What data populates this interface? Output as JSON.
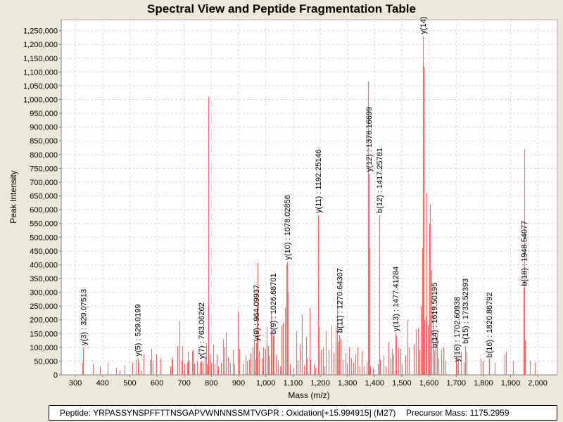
{
  "chart_data": {
    "type": "bar",
    "title": "Spectral View and Peptide Fragmentation Table",
    "xlabel": "Mass (m/z)",
    "ylabel": "Peak Intensity",
    "xlim": [
      248,
      2072
    ],
    "ylim": [
      0,
      1290000
    ],
    "grid": true,
    "x_ticks": [
      "300",
      "400",
      "500",
      "600",
      "700",
      "800",
      "900",
      "1,000",
      "1,100",
      "1,200",
      "1,300",
      "1,400",
      "1,500",
      "1,600",
      "1,700",
      "1,800",
      "1,900",
      "2,000"
    ],
    "x_tick_values": [
      300,
      400,
      500,
      600,
      700,
      800,
      900,
      1000,
      1100,
      1200,
      1300,
      1400,
      1500,
      1600,
      1700,
      1800,
      1900,
      2000
    ],
    "y_ticks": [
      "0",
      "50,000",
      "100,000",
      "150,000",
      "200,000",
      "250,000",
      "300,000",
      "350,000",
      "400,000",
      "450,000",
      "500,000",
      "550,000",
      "600,000",
      "650,000",
      "700,000",
      "750,000",
      "800,000",
      "850,000",
      "900,000",
      "950,000",
      "1,000,000",
      "1,050,000",
      "1,100,000",
      "1,150,000",
      "1,200,000",
      "1,250,000"
    ],
    "y_tick_values": [
      0,
      50000,
      100000,
      150000,
      200000,
      250000,
      300000,
      350000,
      400000,
      450000,
      500000,
      550000,
      600000,
      650000,
      700000,
      750000,
      800000,
      850000,
      900000,
      950000,
      1000000,
      1050000,
      1100000,
      1150000,
      1200000,
      1250000
    ],
    "peak_color": "#ff4545",
    "annotations": [
      {
        "label": "y(3) : 329.07513",
        "mz": 329.07513,
        "intensity": 100000
      },
      {
        "label": "y(5) : 529.0199",
        "mz": 529.0199,
        "intensity": 60000
      },
      {
        "label": "y(7) : 763.06262",
        "mz": 763.06262,
        "intensity": 50000
      },
      {
        "label": "y(9) : 964.09937",
        "mz": 964.09937,
        "intensity": 115000
      },
      {
        "label": "b(9) : 1026.68701",
        "mz": 1026.68701,
        "intensity": 140000
      },
      {
        "label": "y(10) : 1078.02856",
        "mz": 1078.02856,
        "intensity": 410000
      },
      {
        "label": "y(11) : 1192.25146",
        "mz": 1192.25146,
        "intensity": 580000
      },
      {
        "label": "b(11) : 1270.64307",
        "mz": 1270.64307,
        "intensity": 145000
      },
      {
        "label": "y(12) : 1378.16699",
        "mz": 1378.16699,
        "intensity": 730000
      },
      {
        "label": "b(12) : 1417.25781",
        "mz": 1417.25781,
        "intensity": 580000
      },
      {
        "label": "y(13) : 1477.41284",
        "mz": 1477.41284,
        "intensity": 150000
      },
      {
        "label": "y(14)",
        "mz": 1578.0,
        "intensity": 1230000
      },
      {
        "label": "b(14) : 1619.50195",
        "mz": 1619.50195,
        "intensity": 90000
      },
      {
        "label": "y(16) : 1702.60938",
        "mz": 1702.60938,
        "intensity": 40000
      },
      {
        "label": "b(15) : 1733.52393",
        "mz": 1733.52393,
        "intensity": 105000
      },
      {
        "label": "b(16) : 1820.86792",
        "mz": 1820.86792,
        "intensity": 55000
      },
      {
        "label": "b(18) : 1948.54077",
        "mz": 1948.54077,
        "intensity": 315000
      }
    ],
    "peaks": [
      [
        326,
        45000
      ],
      [
        365,
        40000
      ],
      [
        390,
        30000
      ],
      [
        420,
        45000
      ],
      [
        450,
        25000
      ],
      [
        462,
        15000
      ],
      [
        482,
        35000
      ],
      [
        510,
        45000
      ],
      [
        522,
        55000
      ],
      [
        532,
        45000
      ],
      [
        540,
        15000
      ],
      [
        550,
        75000
      ],
      [
        575,
        55000
      ],
      [
        578,
        95000
      ],
      [
        585,
        50000
      ],
      [
        598,
        75000
      ],
      [
        612,
        60000
      ],
      [
        650,
        30000
      ],
      [
        654,
        65000
      ],
      [
        657,
        55000
      ],
      [
        675,
        105000
      ],
      [
        682,
        195000
      ],
      [
        690,
        50000
      ],
      [
        692,
        105000
      ],
      [
        700,
        40000
      ],
      [
        710,
        45000
      ],
      [
        714,
        85000
      ],
      [
        716,
        50000
      ],
      [
        728,
        85000
      ],
      [
        731,
        90000
      ],
      [
        737,
        40000
      ],
      [
        748,
        50000
      ],
      [
        758,
        45000
      ],
      [
        768,
        45000
      ],
      [
        775,
        60000
      ],
      [
        780,
        115000
      ],
      [
        784,
        40000
      ],
      [
        788,
        1010000
      ],
      [
        790,
        250000
      ],
      [
        793,
        75000
      ],
      [
        800,
        45000
      ],
      [
        808,
        110000
      ],
      [
        812,
        40000
      ],
      [
        820,
        75000
      ],
      [
        825,
        30000
      ],
      [
        835,
        45000
      ],
      [
        842,
        130000
      ],
      [
        848,
        100000
      ],
      [
        853,
        155000
      ],
      [
        862,
        65000
      ],
      [
        868,
        45000
      ],
      [
        878,
        90000
      ],
      [
        885,
        40000
      ],
      [
        898,
        230000
      ],
      [
        902,
        95000
      ],
      [
        915,
        40000
      ],
      [
        925,
        70000
      ],
      [
        932,
        50000
      ],
      [
        940,
        55000
      ],
      [
        945,
        80000
      ],
      [
        952,
        100000
      ],
      [
        958,
        130000
      ],
      [
        962,
        55000
      ],
      [
        966,
        250000
      ],
      [
        970,
        408000
      ],
      [
        975,
        85000
      ],
      [
        985,
        60000
      ],
      [
        990,
        100000
      ],
      [
        998,
        95000
      ],
      [
        1004,
        175000
      ],
      [
        1008,
        105000
      ],
      [
        1012,
        70000
      ],
      [
        1018,
        225000
      ],
      [
        1022,
        150000
      ],
      [
        1030,
        150000
      ],
      [
        1038,
        75000
      ],
      [
        1045,
        50000
      ],
      [
        1052,
        30000
      ],
      [
        1058,
        180000
      ],
      [
        1063,
        190000
      ],
      [
        1072,
        245000
      ],
      [
        1076,
        400000
      ],
      [
        1082,
        300000
      ],
      [
        1088,
        40000
      ],
      [
        1102,
        25000
      ],
      [
        1112,
        160000
      ],
      [
        1118,
        50000
      ],
      [
        1125,
        110000
      ],
      [
        1132,
        220000
      ],
      [
        1140,
        35000
      ],
      [
        1148,
        140000
      ],
      [
        1152,
        60000
      ],
      [
        1160,
        245000
      ],
      [
        1165,
        55000
      ],
      [
        1176,
        40000
      ],
      [
        1182,
        25000
      ],
      [
        1195,
        175000
      ],
      [
        1202,
        90000
      ],
      [
        1210,
        100000
      ],
      [
        1216,
        30000
      ],
      [
        1222,
        160000
      ],
      [
        1230,
        90000
      ],
      [
        1242,
        180000
      ],
      [
        1250,
        80000
      ],
      [
        1256,
        170000
      ],
      [
        1262,
        270000
      ],
      [
        1266,
        120000
      ],
      [
        1276,
        130000
      ],
      [
        1282,
        55000
      ],
      [
        1292,
        80000
      ],
      [
        1298,
        40000
      ],
      [
        1305,
        100000
      ],
      [
        1315,
        60000
      ],
      [
        1322,
        45000
      ],
      [
        1330,
        75000
      ],
      [
        1338,
        100000
      ],
      [
        1345,
        30000
      ],
      [
        1352,
        85000
      ],
      [
        1360,
        30000
      ],
      [
        1370,
        45000
      ],
      [
        1376,
        1065000
      ],
      [
        1380,
        460000
      ],
      [
        1384,
        30000
      ],
      [
        1395,
        25000
      ],
      [
        1412,
        40000
      ],
      [
        1420,
        55000
      ],
      [
        1432,
        70000
      ],
      [
        1442,
        30000
      ],
      [
        1452,
        120000
      ],
      [
        1458,
        60000
      ],
      [
        1465,
        95000
      ],
      [
        1470,
        75000
      ],
      [
        1480,
        140000
      ],
      [
        1488,
        100000
      ],
      [
        1496,
        95000
      ],
      [
        1500,
        40000
      ],
      [
        1512,
        70000
      ],
      [
        1520,
        200000
      ],
      [
        1525,
        100000
      ],
      [
        1545,
        110000
      ],
      [
        1552,
        165000
      ],
      [
        1560,
        170000
      ],
      [
        1565,
        90000
      ],
      [
        1570,
        250000
      ],
      [
        1575,
        460000
      ],
      [
        1580,
        1120000
      ],
      [
        1583,
        200000
      ],
      [
        1588,
        210000
      ],
      [
        1592,
        660000
      ],
      [
        1597,
        180000
      ],
      [
        1600,
        550000
      ],
      [
        1604,
        620000
      ],
      [
        1608,
        380000
      ],
      [
        1614,
        250000
      ],
      [
        1625,
        140000
      ],
      [
        1630,
        150000
      ],
      [
        1636,
        60000
      ],
      [
        1645,
        90000
      ],
      [
        1652,
        100000
      ],
      [
        1660,
        50000
      ],
      [
        1700,
        70000
      ],
      [
        1706,
        50000
      ],
      [
        1718,
        85000
      ],
      [
        1728,
        45000
      ],
      [
        1738,
        85000
      ],
      [
        1790,
        60000
      ],
      [
        1798,
        50000
      ],
      [
        1822,
        60000
      ],
      [
        1842,
        45000
      ],
      [
        1878,
        75000
      ],
      [
        1882,
        85000
      ],
      [
        1908,
        50000
      ],
      [
        1950,
        820000
      ],
      [
        1953,
        125000
      ],
      [
        1970,
        50000
      ],
      [
        1988,
        45000
      ]
    ]
  },
  "legend": {
    "peptide": "Peptide: YRPASSYNSPFFTTNSGAPVWNNNSSMTVGPR : Oxidation[+15.994915] (M27)",
    "precursor": "Precursor Mass: 1175.2959"
  }
}
